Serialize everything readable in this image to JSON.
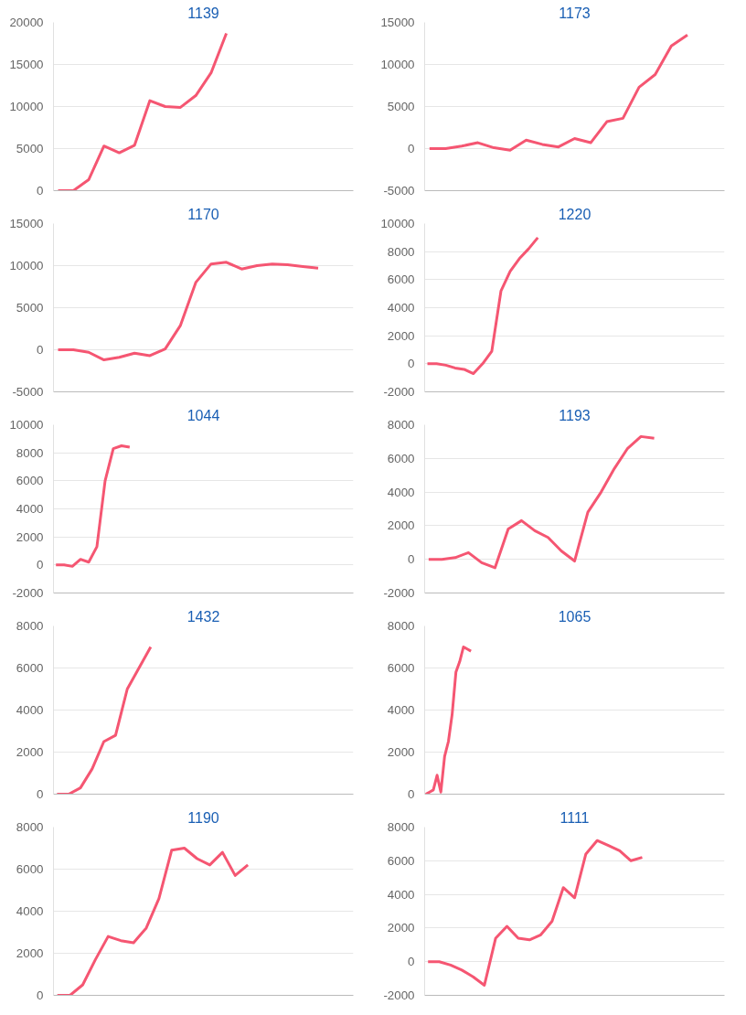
{
  "chart_data": [
    {
      "type": "line",
      "title": "1139",
      "categories": [
        null,
        null,
        null,
        null,
        null,
        null,
        null,
        null,
        null,
        null,
        null,
        null,
        null,
        null,
        null,
        null,
        null,
        null,
        null,
        null
      ],
      "ylim": [
        0,
        20000
      ],
      "yticks": [
        0,
        5000,
        10000,
        15000,
        20000
      ],
      "grid": "y",
      "tick_labels": "y",
      "series": [
        {
          "color": "#f55672",
          "values": [
            0,
            0,
            1300,
            5300,
            4500,
            5400,
            10700,
            10000,
            9900,
            11300,
            14000,
            18700,
            null,
            null,
            null,
            null,
            null,
            null,
            null,
            null
          ]
        }
      ]
    },
    {
      "type": "line",
      "title": "1173",
      "categories": [
        null,
        null,
        null,
        null,
        null,
        null,
        null,
        null,
        null,
        null,
        null,
        null,
        null,
        null,
        null,
        null,
        null,
        null,
        null
      ],
      "ylim": [
        -5000,
        15000
      ],
      "yticks": [
        -5000,
        0,
        5000,
        10000,
        15000
      ],
      "grid": "y",
      "tick_labels": "y",
      "series": [
        {
          "color": "#f55672",
          "values": [
            0,
            0,
            300,
            700,
            100,
            -200,
            1000,
            500,
            200,
            1200,
            700,
            3200,
            3600,
            7300,
            8800,
            12200,
            13500,
            null,
            null
          ]
        }
      ]
    },
    {
      "type": "line",
      "title": "1170",
      "categories": [
        null,
        null,
        null,
        null,
        null,
        null,
        null,
        null,
        null,
        null,
        null,
        null,
        null,
        null,
        null,
        null,
        null,
        null,
        null,
        null
      ],
      "ylim": [
        -5000,
        15000
      ],
      "yticks": [
        -5000,
        0,
        5000,
        10000,
        15000
      ],
      "grid": "y",
      "tick_labels": "y",
      "series": [
        {
          "color": "#f55672",
          "values": [
            0,
            0,
            -300,
            -1200,
            -900,
            -400,
            -700,
            100,
            2900,
            8000,
            10200,
            10400,
            9600,
            10000,
            10200,
            10100,
            9900,
            9700,
            null,
            null
          ]
        }
      ]
    },
    {
      "type": "line",
      "title": "1220",
      "categories": [
        null,
        null,
        null,
        null,
        null,
        null,
        null,
        null,
        null,
        null,
        null,
        null,
        null,
        null,
        null,
        null,
        null,
        null,
        null,
        null,
        null,
        null,
        null,
        null,
        null,
        null,
        null,
        null,
        null,
        null,
        null,
        null,
        null
      ],
      "ylim": [
        -2000,
        10000
      ],
      "yticks": [
        -2000,
        0,
        2000,
        4000,
        6000,
        8000,
        10000
      ],
      "grid": "y",
      "tick_labels": "y",
      "series": [
        {
          "color": "#f55672",
          "values": [
            0,
            0,
            -100,
            -300,
            -400,
            -700,
            0,
            900,
            5200,
            6600,
            7500,
            8200,
            9000,
            null,
            null,
            null,
            null,
            null,
            null,
            null,
            null,
            null,
            null,
            null,
            null,
            null,
            null,
            null,
            null,
            null,
            null,
            null,
            null
          ]
        }
      ]
    },
    {
      "type": "line",
      "title": "1044",
      "categories": [
        null,
        null,
        null,
        null,
        null,
        null,
        null,
        null,
        null,
        null,
        null,
        null,
        null,
        null,
        null,
        null,
        null,
        null,
        null,
        null,
        null,
        null,
        null,
        null,
        null,
        null,
        null,
        null,
        null,
        null,
        null,
        null,
        null,
        null,
        null,
        null,
        null
      ],
      "ylim": [
        -2000,
        10000
      ],
      "yticks": [
        -2000,
        0,
        2000,
        4000,
        6000,
        8000,
        10000
      ],
      "grid": "y",
      "tick_labels": "y",
      "series": [
        {
          "color": "#f55672",
          "values": [
            0,
            0,
            -100,
            400,
            200,
            1300,
            6000,
            8300,
            8500,
            8400,
            null,
            null,
            null,
            null,
            null,
            null,
            null,
            null,
            null,
            null,
            null,
            null,
            null,
            null,
            null,
            null,
            null,
            null,
            null,
            null,
            null,
            null,
            null,
            null,
            null,
            null,
            null
          ]
        }
      ]
    },
    {
      "type": "line",
      "title": "1193",
      "categories": [
        null,
        null,
        null,
        null,
        null,
        null,
        null,
        null,
        null,
        null,
        null,
        null,
        null,
        null,
        null,
        null,
        null,
        null,
        null,
        null,
        null,
        null,
        null
      ],
      "ylim": [
        -2000,
        8000
      ],
      "yticks": [
        -2000,
        0,
        2000,
        4000,
        6000,
        8000
      ],
      "grid": "y",
      "tick_labels": "y",
      "series": [
        {
          "color": "#f55672",
          "values": [
            0,
            0,
            100,
            400,
            -200,
            -500,
            1800,
            2300,
            1700,
            1300,
            500,
            -100,
            2800,
            4000,
            5400,
            6600,
            7300,
            7200,
            null,
            null,
            null,
            null,
            null
          ]
        }
      ]
    },
    {
      "type": "line",
      "title": "1432",
      "categories": [
        null,
        null,
        null,
        null,
        null,
        null,
        null,
        null,
        null,
        null,
        null,
        null,
        null,
        null,
        null,
        null,
        null,
        null,
        null,
        null,
        null,
        null,
        null,
        null,
        null,
        null
      ],
      "ylim": [
        0,
        8000
      ],
      "yticks": [
        0,
        2000,
        4000,
        6000,
        8000
      ],
      "grid": "y",
      "tick_labels": "y",
      "series": [
        {
          "color": "#f55672",
          "values": [
            0,
            0,
            300,
            1200,
            2500,
            2800,
            5000,
            6000,
            7000,
            null,
            null,
            null,
            null,
            null,
            null,
            null,
            null,
            null,
            null,
            null,
            null,
            null,
            null,
            null,
            null,
            null
          ]
        }
      ]
    },
    {
      "type": "line",
      "title": "1065",
      "categories": [
        null,
        null,
        null,
        null,
        null,
        null,
        null,
        null,
        null,
        null,
        null,
        null,
        null,
        null,
        null,
        null,
        null,
        null,
        null,
        null,
        null,
        null,
        null,
        null,
        null,
        null,
        null,
        null,
        null,
        null,
        null,
        null,
        null,
        null,
        null,
        null,
        null,
        null,
        null,
        null,
        null,
        null,
        null,
        null,
        null,
        null,
        null,
        null,
        null,
        null,
        null,
        null,
        null,
        null,
        null,
        null,
        null,
        null,
        null,
        null,
        null,
        null,
        null,
        null,
        null,
        null,
        null,
        null,
        null,
        null,
        null,
        null,
        null,
        null,
        null,
        null,
        null,
        null,
        null,
        null
      ],
      "ylim": [
        0,
        8000
      ],
      "yticks": [
        0,
        2000,
        4000,
        6000,
        8000
      ],
      "grid": "y",
      "tick_labels": "y",
      "series": [
        {
          "color": "#f55672",
          "values": [
            0,
            100,
            200,
            900,
            100,
            1800,
            2500,
            3800,
            5800,
            6300,
            7000,
            6900,
            6800,
            null,
            null,
            null,
            null,
            null,
            null,
            null,
            null,
            null,
            null,
            null,
            null,
            null,
            null,
            null,
            null,
            null,
            null,
            null,
            null,
            null,
            null,
            null,
            null,
            null,
            null,
            null,
            null,
            null,
            null,
            null,
            null,
            null,
            null,
            null,
            null,
            null,
            null,
            null,
            null,
            null,
            null,
            null,
            null,
            null,
            null,
            null,
            null,
            null,
            null,
            null,
            null,
            null,
            null,
            null,
            null,
            null,
            null,
            null,
            null,
            null,
            null,
            null,
            null,
            null,
            null,
            null
          ]
        }
      ]
    },
    {
      "type": "line",
      "title": "1190",
      "categories": [
        null,
        null,
        null,
        null,
        null,
        null,
        null,
        null,
        null,
        null,
        null,
        null,
        null,
        null,
        null,
        null,
        null,
        null,
        null,
        null,
        null,
        null,
        null,
        null
      ],
      "ylim": [
        0,
        8000
      ],
      "yticks": [
        0,
        2000,
        4000,
        6000,
        8000
      ],
      "grid": "y",
      "tick_labels": "y",
      "series": [
        {
          "color": "#f55672",
          "values": [
            0,
            0,
            500,
            1700,
            2800,
            2600,
            2500,
            3200,
            4600,
            6900,
            7000,
            6500,
            6200,
            6800,
            5700,
            6200,
            null,
            null,
            null,
            null,
            null,
            null,
            null,
            null
          ]
        }
      ]
    },
    {
      "type": "line",
      "title": "1111",
      "categories": [
        null,
        null,
        null,
        null,
        null,
        null,
        null,
        null,
        null,
        null,
        null,
        null,
        null,
        null,
        null,
        null,
        null,
        null,
        null,
        null,
        null,
        null,
        null,
        null,
        null,
        null,
        null
      ],
      "ylim": [
        -2000,
        8000
      ],
      "yticks": [
        -2000,
        0,
        2000,
        4000,
        6000,
        8000
      ],
      "grid": "y",
      "tick_labels": "y",
      "series": [
        {
          "color": "#f55672",
          "values": [
            0,
            0,
            -200,
            -500,
            -900,
            -1400,
            1400,
            2100,
            1400,
            1300,
            1600,
            2400,
            4400,
            3800,
            6400,
            7200,
            6900,
            6600,
            6000,
            6200,
            null,
            null,
            null,
            null,
            null,
            null,
            null
          ]
        }
      ]
    }
  ]
}
